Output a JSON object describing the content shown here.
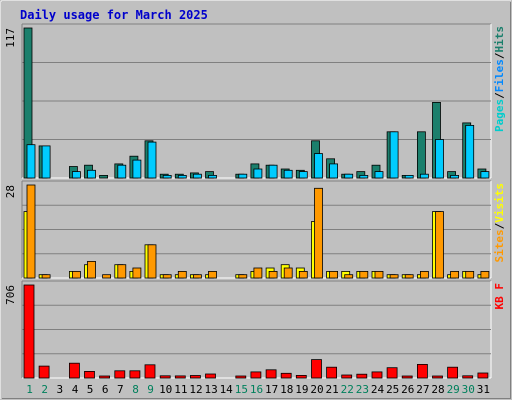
{
  "chart_data": {
    "type": "bar",
    "title": "Daily usage for March 2025",
    "categories": [
      "1",
      "2",
      "3",
      "4",
      "5",
      "6",
      "7",
      "8",
      "9",
      "10",
      "11",
      "12",
      "13",
      "14",
      "15",
      "16",
      "17",
      "18",
      "19",
      "20",
      "21",
      "22",
      "23",
      "24",
      "25",
      "26",
      "27",
      "28",
      "29",
      "30",
      "31"
    ],
    "weekend_days": [
      "1",
      "2",
      "8",
      "9",
      "15",
      "16",
      "22",
      "23",
      "29",
      "30"
    ],
    "colors": {
      "hits": "#1b7f6c",
      "files": "#00ccff",
      "pages": "#00cccc",
      "visits": "#ffff00",
      "sites": "#ff9900",
      "kbytes": "#ff0000",
      "weekday_label": "#000000",
      "weekend_label": "#00805c",
      "title": "#0000cc",
      "panel_bg": "#c0c0c0"
    },
    "panels": [
      {
        "max_label": "117",
        "ylim": [
          0,
          117
        ],
        "legend": [
          {
            "text": "Pages",
            "color": "#00cccc"
          },
          {
            "text": "/",
            "color": "#000000"
          },
          {
            "text": "Files",
            "color": "#0088ff"
          },
          {
            "text": "/",
            "color": "#000000"
          },
          {
            "text": "Hits",
            "color": "#1b7f6c"
          }
        ],
        "series": [
          {
            "name": "Hits",
            "values": [
              117,
              25,
              0,
              9,
              10,
              2,
              11,
              17,
              29,
              3,
              3,
              4,
              5,
              0,
              3,
              11,
              10,
              7,
              6,
              29,
              15,
              3,
              5,
              10,
              36,
              2,
              36,
              59,
              5,
              43,
              7
            ]
          },
          {
            "name": "Files",
            "values": [
              26,
              25,
              0,
              5,
              6,
              0,
              10,
              14,
              28,
              2,
              2,
              3,
              2,
              0,
              3,
              7,
              10,
              6,
              5,
              19,
              11,
              3,
              2,
              5,
              36,
              2,
              3,
              30,
              2,
              41,
              5
            ]
          },
          {
            "name": "Pages",
            "values": [
              0,
              0,
              0,
              0,
              0,
              0,
              0,
              0,
              0,
              0,
              0,
              0,
              0,
              0,
              0,
              0,
              0,
              0,
              0,
              0,
              0,
              0,
              0,
              0,
              0,
              0,
              0,
              0,
              0,
              0,
              0
            ]
          }
        ]
      },
      {
        "max_label": "28",
        "ylim": [
          0,
          28
        ],
        "legend": [
          {
            "text": "Sites",
            "color": "#ff9900"
          },
          {
            "text": "/",
            "color": "#000000"
          },
          {
            "text": "Visits",
            "color": "#ffff00"
          }
        ],
        "series": [
          {
            "name": "Visits",
            "values": [
              20,
              1,
              0,
              2,
              4,
              0,
              4,
              2,
              10,
              1,
              1,
              1,
              1,
              0,
              1,
              2,
              3,
              4,
              3,
              17,
              2,
              2,
              2,
              2,
              1,
              1,
              1,
              20,
              1,
              2,
              1
            ]
          },
          {
            "name": "Sites",
            "values": [
              28,
              1,
              0,
              2,
              5,
              1,
              4,
              3,
              10,
              1,
              2,
              1,
              2,
              0,
              1,
              3,
              2,
              3,
              2,
              27,
              2,
              1,
              2,
              2,
              1,
              1,
              2,
              20,
              2,
              2,
              2
            ]
          }
        ]
      },
      {
        "max_label": "706",
        "ylim": [
          0,
          706
        ],
        "legend": [
          {
            "text": "KB F",
            "color": "#ff0000"
          }
        ],
        "series": [
          {
            "name": "KB F",
            "values": [
              706,
              90,
              0,
              112,
              50,
              15,
              55,
              55,
              100,
              17,
              16,
              19,
              30,
              0,
              7,
              46,
              62,
              36,
              20,
              140,
              82,
              23,
              29,
              46,
              78,
              10,
              103,
              15,
              82,
              17,
              38
            ]
          }
        ]
      }
    ]
  }
}
